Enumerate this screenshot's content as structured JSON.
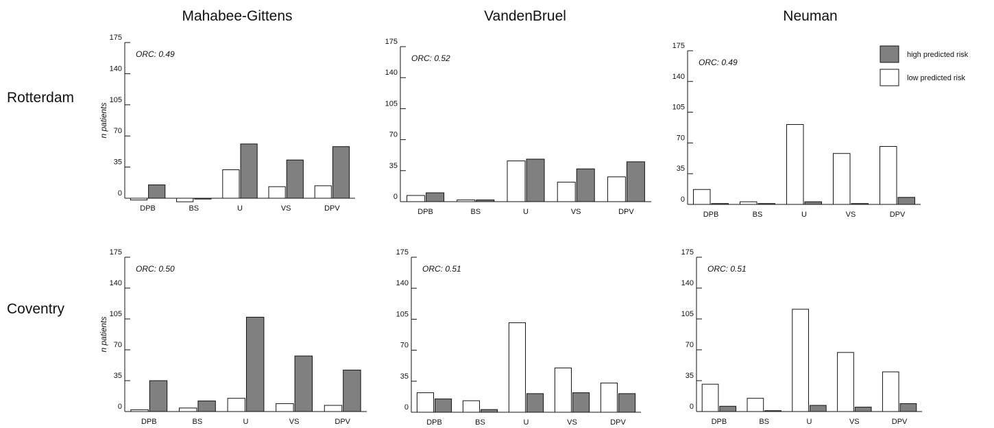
{
  "column_titles": [
    "Mahabee-Gittens",
    "VandenBruel",
    "Neuman"
  ],
  "row_titles": [
    "Rotterdam",
    "Coventry"
  ],
  "legend": {
    "placement": "top-right",
    "entries": [
      {
        "label": "high predicted risk",
        "color": "#808080"
      },
      {
        "label": "low predicted risk",
        "color": "#ffffff"
      }
    ]
  },
  "colors": {
    "high": "#808080",
    "low": "#ffffff",
    "stroke": "#111111"
  },
  "chart_data": [
    {
      "type": "bar",
      "row": "Rotterdam",
      "model": "Mahabee-Gittens",
      "annotation": "ORC: 0.49",
      "ylabel": "n patients",
      "categories": [
        "DPB",
        "BS",
        "U",
        "VS",
        "DPV"
      ],
      "ylim": [
        0,
        175
      ],
      "yticks": [
        0,
        35,
        70,
        105,
        140,
        175
      ],
      "series": [
        {
          "name": "low predicted risk",
          "values": [
            -2,
            -4,
            32,
            13,
            14
          ]
        },
        {
          "name": "high predicted risk",
          "values": [
            15,
            0,
            61,
            43,
            58
          ]
        }
      ]
    },
    {
      "type": "bar",
      "row": "Rotterdam",
      "model": "VandenBruel",
      "annotation": "ORC: 0.52",
      "ylabel": "",
      "categories": [
        "DPB",
        "BS",
        "U",
        "VS",
        "DPV"
      ],
      "ylim": [
        0,
        175
      ],
      "yticks": [
        0,
        35,
        70,
        105,
        140,
        175
      ],
      "series": [
        {
          "name": "low predicted risk",
          "values": [
            7,
            2,
            46,
            22,
            28
          ]
        },
        {
          "name": "high predicted risk",
          "values": [
            10,
            2,
            48,
            37,
            45
          ]
        }
      ]
    },
    {
      "type": "bar",
      "row": "Rotterdam",
      "model": "Neuman",
      "annotation": "ORC: 0.49",
      "ylabel": "",
      "categories": [
        "DPB",
        "BS",
        "U",
        "VS",
        "DPV"
      ],
      "ylim": [
        0,
        175
      ],
      "yticks": [
        0,
        35,
        70,
        105,
        140,
        175
      ],
      "series": [
        {
          "name": "low predicted risk",
          "values": [
            17,
            3,
            91,
            58,
            66
          ]
        },
        {
          "name": "high predicted risk",
          "values": [
            1,
            1,
            3,
            1,
            8
          ]
        }
      ]
    },
    {
      "type": "bar",
      "row": "Coventry",
      "model": "Mahabee-Gittens",
      "annotation": "ORC: 0.50",
      "ylabel": "n patients",
      "categories": [
        "DPB",
        "BS",
        "U",
        "VS",
        "DPV"
      ],
      "ylim": [
        0,
        175
      ],
      "yticks": [
        0,
        35,
        70,
        105,
        140,
        175
      ],
      "series": [
        {
          "name": "low predicted risk",
          "values": [
            2,
            4,
            15,
            9,
            7
          ]
        },
        {
          "name": "high predicted risk",
          "values": [
            35,
            12,
            107,
            63,
            47
          ]
        }
      ]
    },
    {
      "type": "bar",
      "row": "Coventry",
      "model": "VandenBruel",
      "annotation": "ORC: 0.51",
      "ylabel": "",
      "categories": [
        "DPB",
        "BS",
        "U",
        "VS",
        "DPV"
      ],
      "ylim": [
        0,
        175
      ],
      "yticks": [
        0,
        35,
        70,
        105,
        140,
        175
      ],
      "series": [
        {
          "name": "low predicted risk",
          "values": [
            22,
            13,
            101,
            50,
            33
          ]
        },
        {
          "name": "high predicted risk",
          "values": [
            15,
            3,
            21,
            22,
            21
          ]
        }
      ]
    },
    {
      "type": "bar",
      "row": "Coventry",
      "model": "Neuman",
      "annotation": "ORC: 0.51",
      "ylabel": "",
      "categories": [
        "DPB",
        "BS",
        "U",
        "VS",
        "DPV"
      ],
      "ylim": [
        0,
        175
      ],
      "yticks": [
        0,
        35,
        70,
        105,
        140,
        175
      ],
      "series": [
        {
          "name": "low predicted risk",
          "values": [
            31,
            15,
            116,
            67,
            45
          ]
        },
        {
          "name": "high predicted risk",
          "values": [
            6,
            1,
            7,
            5,
            9
          ]
        }
      ]
    }
  ]
}
